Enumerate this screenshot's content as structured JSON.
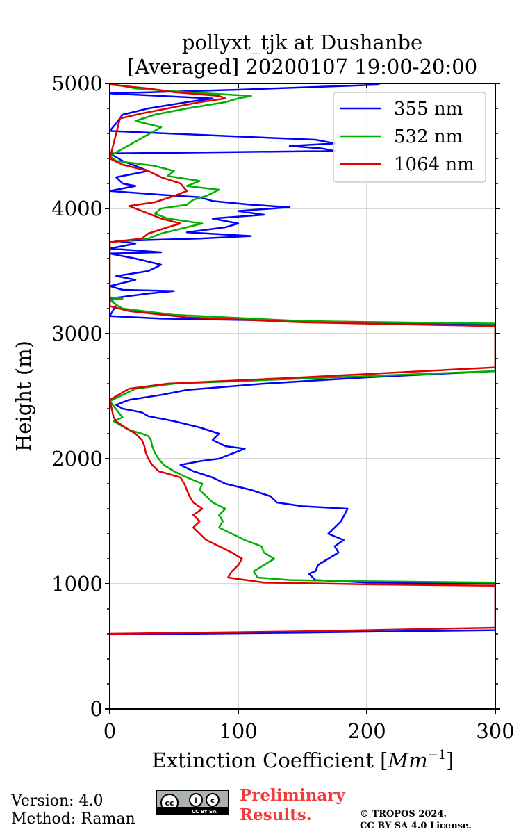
{
  "chart_data": {
    "type": "line",
    "title": "pollyxt_tjk at Dushanbe",
    "subtitle": "[Averaged] 20200107 19:00-20:00",
    "xlabel": "Extinction Coefficient [Mm^-1]",
    "xlabel_main": "Extinction Coefficient [",
    "xlabel_unit": "Mm",
    "xlabel_exp": "−1",
    "xlabel_close": "]",
    "ylabel": "Height (m)",
    "xlim": [
      0,
      300
    ],
    "ylim": [
      0,
      5000
    ],
    "xticks": [
      0,
      100,
      200,
      300
    ],
    "xtick_labels": [
      "0",
      "100",
      "200",
      "300"
    ],
    "yticks": [
      0,
      1000,
      2000,
      3000,
      4000,
      5000
    ],
    "ytick_labels": [
      "0",
      "1000",
      "2000",
      "3000",
      "4000",
      "5000"
    ],
    "grid": true,
    "legend_position": "top-right",
    "series": [
      {
        "name": "355 nm",
        "color": "#0000ff",
        "points": [
          [
            0,
            595
          ],
          [
            150,
            610
          ],
          [
            300,
            630
          ],
          [
            300,
            1000
          ],
          [
            200,
            1010
          ],
          [
            160,
            1030
          ],
          [
            155,
            1080
          ],
          [
            160,
            1100
          ],
          [
            162,
            1150
          ],
          [
            170,
            1200
          ],
          [
            178,
            1250
          ],
          [
            175,
            1300
          ],
          [
            182,
            1350
          ],
          [
            170,
            1400
          ],
          [
            175,
            1450
          ],
          [
            180,
            1500
          ],
          [
            183,
            1560
          ],
          [
            185,
            1600
          ],
          [
            150,
            1620
          ],
          [
            130,
            1650
          ],
          [
            125,
            1700
          ],
          [
            110,
            1750
          ],
          [
            90,
            1800
          ],
          [
            80,
            1850
          ],
          [
            65,
            1900
          ],
          [
            55,
            1950
          ],
          [
            70,
            1980
          ],
          [
            85,
            2000
          ],
          [
            95,
            2040
          ],
          [
            105,
            2080
          ],
          [
            90,
            2100
          ],
          [
            80,
            2150
          ],
          [
            85,
            2200
          ],
          [
            70,
            2250
          ],
          [
            50,
            2300
          ],
          [
            30,
            2340
          ],
          [
            25,
            2370
          ],
          [
            10,
            2400
          ],
          [
            5,
            2430
          ],
          [
            15,
            2470
          ],
          [
            40,
            2510
          ],
          [
            60,
            2550
          ],
          [
            120,
            2600
          ],
          [
            200,
            2650
          ],
          [
            300,
            2700
          ],
          [
            300,
            3070
          ],
          [
            150,
            3100
          ],
          [
            40,
            3120
          ],
          [
            0,
            3140
          ],
          [
            5,
            3230
          ],
          [
            0,
            3280
          ],
          [
            30,
            3320
          ],
          [
            50,
            3340
          ],
          [
            10,
            3350
          ],
          [
            0,
            3380
          ],
          [
            20,
            3430
          ],
          [
            5,
            3460
          ],
          [
            30,
            3500
          ],
          [
            40,
            3550
          ],
          [
            20,
            3600
          ],
          [
            0,
            3640
          ],
          [
            40,
            3650
          ],
          [
            0,
            3680
          ],
          [
            20,
            3720
          ],
          [
            5,
            3740
          ],
          [
            70,
            3760
          ],
          [
            110,
            3780
          ],
          [
            60,
            3810
          ],
          [
            90,
            3850
          ],
          [
            100,
            3880
          ],
          [
            80,
            3920
          ],
          [
            120,
            3950
          ],
          [
            100,
            3980
          ],
          [
            140,
            4010
          ],
          [
            110,
            4030
          ],
          [
            80,
            4060
          ],
          [
            70,
            4090
          ],
          [
            40,
            4110
          ],
          [
            0,
            4140
          ],
          [
            20,
            4180
          ],
          [
            10,
            4200
          ],
          [
            5,
            4250
          ],
          [
            30,
            4300
          ],
          [
            10,
            4380
          ],
          [
            0,
            4440
          ],
          [
            175,
            4460
          ],
          [
            165,
            4480
          ],
          [
            140,
            4500
          ],
          [
            175,
            4520
          ],
          [
            160,
            4550
          ],
          [
            90,
            4580
          ],
          [
            0,
            4620
          ],
          [
            5,
            4680
          ],
          [
            10,
            4750
          ],
          [
            30,
            4800
          ],
          [
            60,
            4850
          ],
          [
            80,
            4880
          ],
          [
            0,
            4920
          ],
          [
            100,
            4950
          ],
          [
            210,
            4990
          ]
        ]
      },
      {
        "name": "532 nm",
        "color": "#00b000",
        "points": [
          [
            300,
            1010
          ],
          [
            200,
            1020
          ],
          [
            140,
            1030
          ],
          [
            115,
            1050
          ],
          [
            112,
            1100
          ],
          [
            120,
            1150
          ],
          [
            128,
            1200
          ],
          [
            120,
            1250
          ],
          [
            118,
            1300
          ],
          [
            105,
            1350
          ],
          [
            95,
            1400
          ],
          [
            85,
            1450
          ],
          [
            88,
            1500
          ],
          [
            85,
            1550
          ],
          [
            90,
            1600
          ],
          [
            80,
            1650
          ],
          [
            75,
            1700
          ],
          [
            70,
            1750
          ],
          [
            72,
            1800
          ],
          [
            60,
            1850
          ],
          [
            50,
            1900
          ],
          [
            42,
            1950
          ],
          [
            38,
            2000
          ],
          [
            35,
            2050
          ],
          [
            33,
            2100
          ],
          [
            32,
            2150
          ],
          [
            30,
            2180
          ],
          [
            25,
            2200
          ],
          [
            15,
            2230
          ],
          [
            8,
            2270
          ],
          [
            3,
            2300
          ],
          [
            10,
            2330
          ],
          [
            0,
            2460
          ],
          [
            20,
            2560
          ],
          [
            50,
            2600
          ],
          [
            150,
            2640
          ],
          [
            300,
            2700
          ],
          [
            300,
            3080
          ],
          [
            150,
            3100
          ],
          [
            50,
            3150
          ],
          [
            10,
            3200
          ],
          [
            5,
            3230
          ],
          [
            0,
            3270
          ],
          [
            10,
            3280
          ],
          [
            0,
            3290
          ],
          [
            0,
            3730
          ],
          [
            30,
            3760
          ],
          [
            40,
            3800
          ],
          [
            60,
            3850
          ],
          [
            72,
            3880
          ],
          [
            45,
            3920
          ],
          [
            35,
            3960
          ],
          [
            40,
            4000
          ],
          [
            60,
            4030
          ],
          [
            65,
            4070
          ],
          [
            75,
            4100
          ],
          [
            85,
            4150
          ],
          [
            60,
            4180
          ],
          [
            70,
            4220
          ],
          [
            45,
            4260
          ],
          [
            50,
            4300
          ],
          [
            35,
            4340
          ],
          [
            5,
            4380
          ],
          [
            0,
            4420
          ],
          [
            40,
            4650
          ],
          [
            20,
            4700
          ],
          [
            35,
            4750
          ],
          [
            60,
            4800
          ],
          [
            90,
            4850
          ],
          [
            100,
            4880
          ],
          [
            110,
            4900
          ],
          [
            60,
            4930
          ],
          [
            20,
            4960
          ],
          [
            0,
            5000
          ]
        ]
      },
      {
        "name": "1064 nm",
        "color": "#e00000",
        "points": [
          [
            0,
            600
          ],
          [
            150,
            620
          ],
          [
            300,
            650
          ],
          [
            300,
            985
          ],
          [
            200,
            995
          ],
          [
            120,
            1010
          ],
          [
            92,
            1050
          ],
          [
            95,
            1100
          ],
          [
            100,
            1150
          ],
          [
            103,
            1200
          ],
          [
            95,
            1250
          ],
          [
            85,
            1300
          ],
          [
            75,
            1350
          ],
          [
            70,
            1400
          ],
          [
            65,
            1450
          ],
          [
            70,
            1500
          ],
          [
            65,
            1550
          ],
          [
            72,
            1600
          ],
          [
            65,
            1650
          ],
          [
            62,
            1700
          ],
          [
            60,
            1750
          ],
          [
            58,
            1800
          ],
          [
            55,
            1850
          ],
          [
            45,
            1880
          ],
          [
            38,
            1900
          ],
          [
            33,
            1950
          ],
          [
            30,
            2000
          ],
          [
            28,
            2050
          ],
          [
            27,
            2100
          ],
          [
            25,
            2150
          ],
          [
            20,
            2200
          ],
          [
            12,
            2250
          ],
          [
            5,
            2300
          ],
          [
            3,
            2330
          ],
          [
            0,
            2470
          ],
          [
            15,
            2560
          ],
          [
            45,
            2600
          ],
          [
            150,
            2650
          ],
          [
            300,
            2730
          ],
          [
            300,
            3060
          ],
          [
            150,
            3090
          ],
          [
            60,
            3130
          ],
          [
            15,
            3180
          ],
          [
            0,
            3220
          ],
          [
            0,
            3730
          ],
          [
            25,
            3760
          ],
          [
            30,
            3800
          ],
          [
            45,
            3850
          ],
          [
            55,
            3880
          ],
          [
            40,
            3920
          ],
          [
            30,
            3960
          ],
          [
            15,
            4020
          ],
          [
            35,
            4050
          ],
          [
            50,
            4100
          ],
          [
            60,
            4140
          ],
          [
            55,
            4200
          ],
          [
            40,
            4250
          ],
          [
            30,
            4300
          ],
          [
            10,
            4350
          ],
          [
            0,
            4400
          ],
          [
            8,
            4720
          ],
          [
            25,
            4760
          ],
          [
            45,
            4800
          ],
          [
            70,
            4850
          ],
          [
            90,
            4880
          ],
          [
            85,
            4900
          ],
          [
            50,
            4930
          ],
          [
            30,
            4960
          ],
          [
            0,
            4990
          ]
        ]
      }
    ]
  },
  "footer": {
    "version": "Version: 4.0",
    "method": "Method: Raman",
    "preliminary_line1": "Preliminary",
    "preliminary_line2": "Results.",
    "copyright_line1": "© TROPOS 2024.",
    "copyright_line2": "CC BY SA 4.0 License.",
    "license_badge": "CC BY SA"
  }
}
